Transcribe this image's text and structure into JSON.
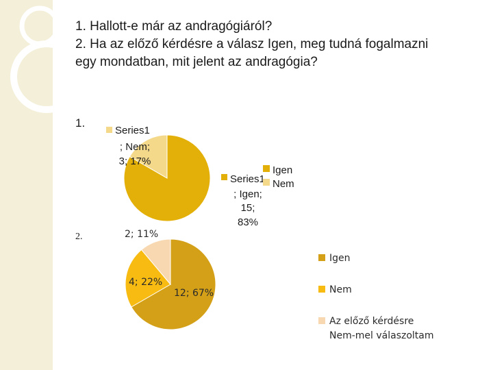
{
  "question": {
    "line1": "1. Hallott-e már az andragógiáról?",
    "line2": "2. Ha az előző kérdésre a válasz Igen, meg tudná fogalmazni",
    "line3": "egy mondatban, mit jelent az andragógia?"
  },
  "item_numbers": {
    "first": "1.",
    "second": "2."
  },
  "colors": {
    "strip": "#f4efd9",
    "pie1_igen": "#e3b009",
    "pie1_nem": "#f5d98b",
    "pie2_igen": "#d4a017",
    "pie2_nem": "#f7bb12",
    "pie2_other": "#f8d8b0"
  },
  "chart_data": [
    {
      "type": "pie",
      "title": "",
      "categories": [
        "Igen",
        "Nem"
      ],
      "values": [
        15,
        3
      ],
      "percentages": [
        83,
        17
      ],
      "legend": [
        "Igen",
        "Nem"
      ],
      "legend_position": "right",
      "data_labels": {
        "igen": [
          "Series1",
          "; Igen;",
          "15;",
          "83%"
        ],
        "nem": [
          "Series1",
          "; Nem;",
          "3; 17%"
        ]
      }
    },
    {
      "type": "pie",
      "title": "",
      "categories": [
        "Igen",
        "Nem",
        "Az előző kérdésre Nem-mel válaszoltam"
      ],
      "values": [
        12,
        4,
        2
      ],
      "percentages": [
        67,
        22,
        11
      ],
      "legend": [
        "Igen",
        "Nem",
        "Az előző kérdésre",
        "Nem-mel válaszoltam"
      ],
      "legend_position": "right",
      "data_labels": {
        "igen": "12; 67%",
        "nem": "4; 22%",
        "other": "2; 11%"
      }
    }
  ]
}
